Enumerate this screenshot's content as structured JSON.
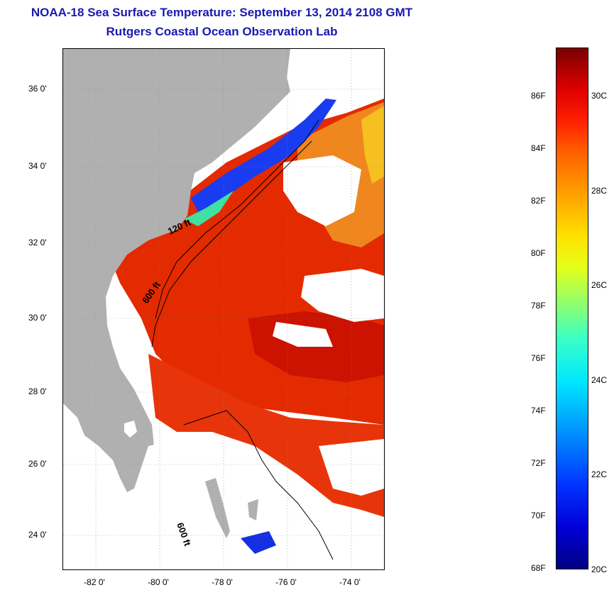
{
  "title": {
    "line1": "NOAA-18 Sea Surface Temperature:  September 13, 2014 2108 GMT",
    "line2": "Rutgers Coastal Ocean Observation Lab"
  },
  "map": {
    "lat_ticks": [
      "36 0'",
      "34 0'",
      "32 0'",
      "30 0'",
      "28 0'",
      "26 0'",
      "24 0'"
    ],
    "lon_ticks": [
      "-82 0'",
      "-80 0'",
      "-78 0'",
      "-76 0'",
      "-74 0'"
    ],
    "isobath_labels": [
      "120 ft",
      "600 ft",
      "600 ft"
    ],
    "colors": {
      "land": "#b0b0b0",
      "cloud": "#ffffff",
      "warm_sst": "#e82800",
      "hot_sst": "#d01400",
      "orange_sst": "#f08a20",
      "cool_sst": "#2040ff"
    }
  },
  "colorbar": {
    "fahrenheit_labels": [
      "86F",
      "84F",
      "82F",
      "80F",
      "78F",
      "76F",
      "74F",
      "72F",
      "70F",
      "68F"
    ],
    "celsius_labels": [
      "30C",
      "28C",
      "26C",
      "24C",
      "22C",
      "20C"
    ],
    "range_f": [
      68,
      87.7
    ],
    "range_c": [
      20,
      30.9
    ]
  }
}
